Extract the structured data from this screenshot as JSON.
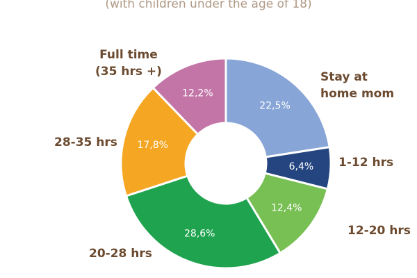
{
  "subtitle": "(with children under the age of 18)",
  "chart_data": {
    "type": "pie",
    "donut": true,
    "title": "",
    "subtitle": "(with children under the age of 18)",
    "categories": [
      "Stay at home mom",
      "1-12 hrs",
      "12-20 hrs",
      "20-28 hrs",
      "28-35 hrs",
      "Full time (35 hrs +)"
    ],
    "values": [
      22.5,
      6.4,
      12.4,
      28.6,
      17.8,
      12.2
    ],
    "value_labels": [
      "22,5%",
      "6,4%",
      "12,4%",
      "28,6%",
      "17,8%",
      "12,2%"
    ],
    "colors": [
      "#87a5d6",
      "#24457f",
      "#78bf54",
      "#1fa34e",
      "#f5a623",
      "#c375a7"
    ],
    "label_color": "#6b4a2f",
    "subtitle_color": "#b09a86"
  },
  "labels": {
    "stay": [
      "Stay at",
      "home mom"
    ],
    "h1_12": "1-12 hrs",
    "h12_20": "12-20 hrs",
    "h20_28": "20-28 hrs",
    "h28_35": "28-35 hrs",
    "full": [
      "Full time",
      "(35 hrs +)"
    ]
  }
}
